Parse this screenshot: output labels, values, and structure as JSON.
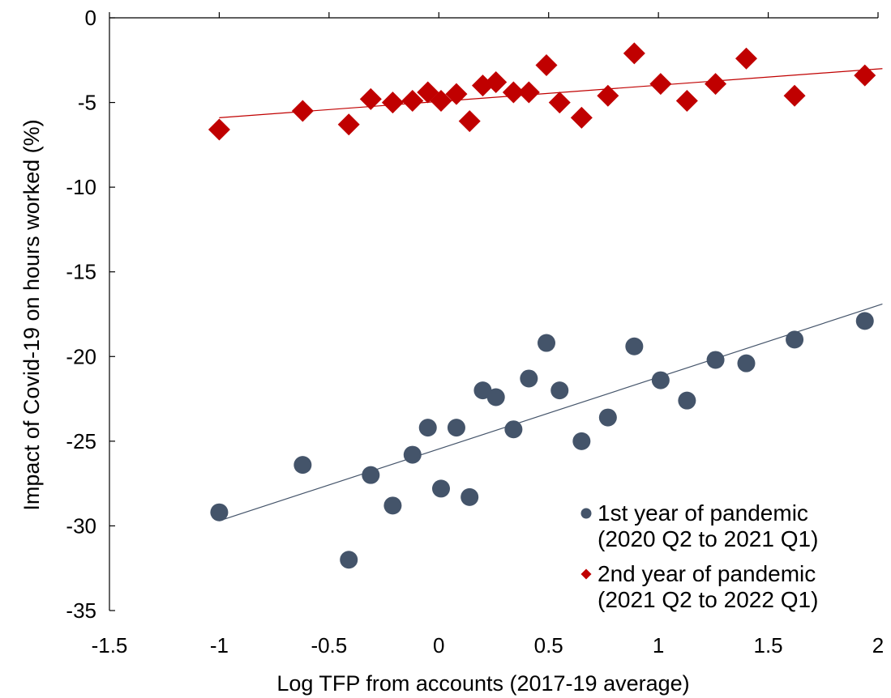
{
  "chart_data": {
    "type": "scatter",
    "title": "",
    "xlabel": "Log TFP from accounts (2017-19 average)",
    "ylabel": "Impact of Covid-19 on hours worked (%)",
    "xlim": [
      -1.5,
      2
    ],
    "ylim": [
      -35,
      0
    ],
    "xticks": [
      "-1.5",
      "-1",
      "-0.5",
      "0",
      "0.5",
      "1",
      "1.5",
      "2"
    ],
    "yticks": [
      "0",
      "-5",
      "-10",
      "-15",
      "-20",
      "-25",
      "-30",
      "-35"
    ],
    "grid": false,
    "legend_position": "bottom-right",
    "series": [
      {
        "name": "1st year of pandemic",
        "legend_lines": [
          "1st year of pandemic",
          "(2020 Q2 to 2021 Q1)"
        ],
        "marker": "circle",
        "color": "#44546a",
        "points": [
          [
            -1.0,
            -29.2
          ],
          [
            -0.62,
            -26.4
          ],
          [
            -0.41,
            -32.0
          ],
          [
            -0.31,
            -27.0
          ],
          [
            -0.21,
            -28.8
          ],
          [
            -0.12,
            -25.8
          ],
          [
            -0.05,
            -24.2
          ],
          [
            0.01,
            -27.8
          ],
          [
            0.08,
            -24.2
          ],
          [
            0.14,
            -28.3
          ],
          [
            0.2,
            -22.0
          ],
          [
            0.26,
            -22.4
          ],
          [
            0.34,
            -24.3
          ],
          [
            0.41,
            -21.3
          ],
          [
            0.49,
            -19.2
          ],
          [
            0.55,
            -22.0
          ],
          [
            0.65,
            -25.0
          ],
          [
            0.77,
            -23.6
          ],
          [
            0.89,
            -19.4
          ],
          [
            1.01,
            -21.4
          ],
          [
            1.13,
            -22.6
          ],
          [
            1.26,
            -20.2
          ],
          [
            1.4,
            -20.4
          ],
          [
            1.62,
            -19.0
          ],
          [
            1.94,
            -17.9
          ]
        ],
        "trend": {
          "x": [
            -1.0,
            2.02
          ],
          "y": [
            -29.7,
            -16.9
          ]
        }
      },
      {
        "name": "2nd year of pandemic",
        "legend_lines": [
          "2nd year of pandemic",
          "(2021 Q2 to 2022 Q1)"
        ],
        "marker": "diamond",
        "color": "#c00000",
        "points": [
          [
            -1.0,
            -6.6
          ],
          [
            -0.62,
            -5.5
          ],
          [
            -0.41,
            -6.3
          ],
          [
            -0.31,
            -4.8
          ],
          [
            -0.21,
            -5.0
          ],
          [
            -0.12,
            -4.9
          ],
          [
            -0.05,
            -4.4
          ],
          [
            0.01,
            -4.9
          ],
          [
            0.08,
            -4.5
          ],
          [
            0.14,
            -6.1
          ],
          [
            0.2,
            -4.0
          ],
          [
            0.26,
            -3.8
          ],
          [
            0.34,
            -4.4
          ],
          [
            0.41,
            -4.4
          ],
          [
            0.49,
            -2.8
          ],
          [
            0.55,
            -5.0
          ],
          [
            0.65,
            -5.9
          ],
          [
            0.77,
            -4.6
          ],
          [
            0.89,
            -2.1
          ],
          [
            1.01,
            -3.9
          ],
          [
            1.13,
            -4.9
          ],
          [
            1.26,
            -3.9
          ],
          [
            1.4,
            -2.4
          ],
          [
            1.62,
            -4.6
          ],
          [
            1.94,
            -3.4
          ]
        ],
        "trend": {
          "x": [
            -1.0,
            2.02
          ],
          "y": [
            -5.9,
            -3.0
          ]
        }
      }
    ]
  }
}
